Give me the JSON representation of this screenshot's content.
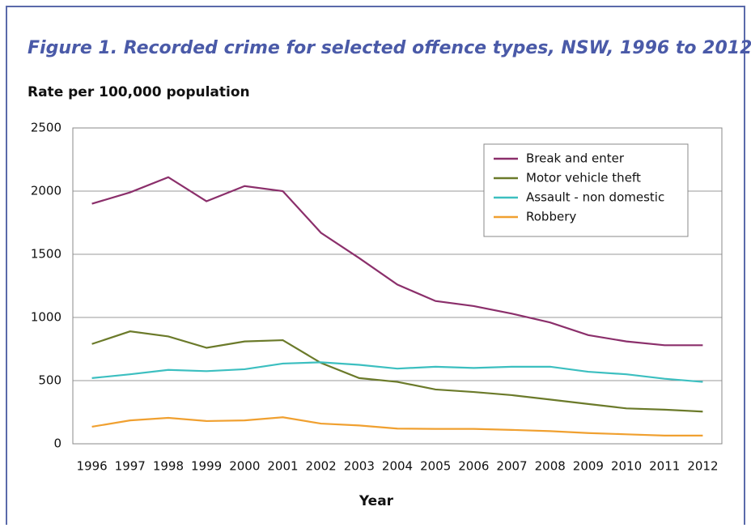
{
  "chart_data": {
    "type": "line",
    "title": "Figure 1. Recorded crime for selected offence types, NSW, 1996 to 2012",
    "y_label": "Rate per 100,000 population",
    "x_label": "Year",
    "categories": [
      "1996",
      "1997",
      "1998",
      "1999",
      "2000",
      "2001",
      "2002",
      "2003",
      "2004",
      "2005",
      "2006",
      "2007",
      "2008",
      "2009",
      "2010",
      "2011",
      "2012"
    ],
    "series": [
      {
        "name": "Break and enter",
        "color": "#8b2f6b",
        "values": [
          1900,
          1990,
          2110,
          1920,
          2040,
          2000,
          1670,
          1470,
          1260,
          1130,
          1090,
          1030,
          960,
          860,
          810,
          780,
          780
        ]
      },
      {
        "name": "Motor vehicle theft",
        "color": "#6b7a2a",
        "values": [
          790,
          890,
          850,
          760,
          810,
          820,
          640,
          520,
          490,
          430,
          410,
          385,
          350,
          315,
          280,
          270,
          255
        ]
      },
      {
        "name": "Assault - non domestic",
        "color": "#3cbfc0",
        "values": [
          520,
          550,
          585,
          575,
          590,
          635,
          645,
          625,
          595,
          610,
          600,
          610,
          610,
          570,
          550,
          515,
          490
        ]
      },
      {
        "name": "Robbery",
        "color": "#f0a030",
        "values": [
          135,
          185,
          205,
          180,
          185,
          210,
          160,
          145,
          120,
          118,
          118,
          110,
          100,
          85,
          75,
          65,
          65
        ]
      }
    ],
    "ylim": [
      0,
      2500
    ],
    "yticks": [
      0,
      500,
      1000,
      1500,
      2000,
      2500
    ],
    "grid": true,
    "legend": "upper right"
  }
}
